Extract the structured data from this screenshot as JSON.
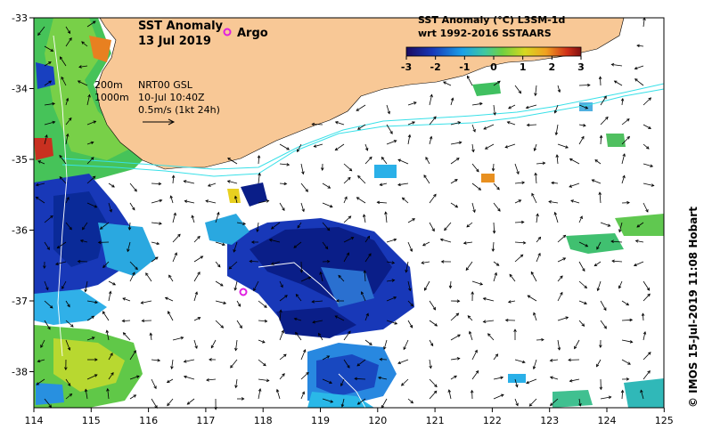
{
  "title": {
    "line1": "SST Anomaly",
    "line2": "13 Jul 2019"
  },
  "argo_label": "Argo",
  "colorbar": {
    "title_line1": "SST Anomaly (°C) L3SM-1d",
    "title_line2": "wrt 1992-2016 SSTAARS",
    "ticks": [
      "-3",
      "-2",
      "-1",
      "0",
      "1",
      "2",
      "3"
    ]
  },
  "info": {
    "depth_200": "200m",
    "depth_1000": "1000m",
    "product": "NRT00 GSL",
    "date": "10-Jul 10:40Z",
    "scale": "0.5m/s (1kt 24h)"
  },
  "axes": {
    "x_ticks": [
      "114",
      "115",
      "116",
      "117",
      "118",
      "119",
      "120",
      "121",
      "122",
      "123",
      "124",
      "125"
    ],
    "y_ticks": [
      "-33",
      "-34",
      "-35",
      "-36",
      "-37",
      "-38"
    ]
  },
  "credit": "© IMOS 15-Jul-2019 11:08 Hobart",
  "colors": {
    "land": "#f8c896",
    "isobath": "#38e0e8",
    "argo": "#e020e0"
  }
}
